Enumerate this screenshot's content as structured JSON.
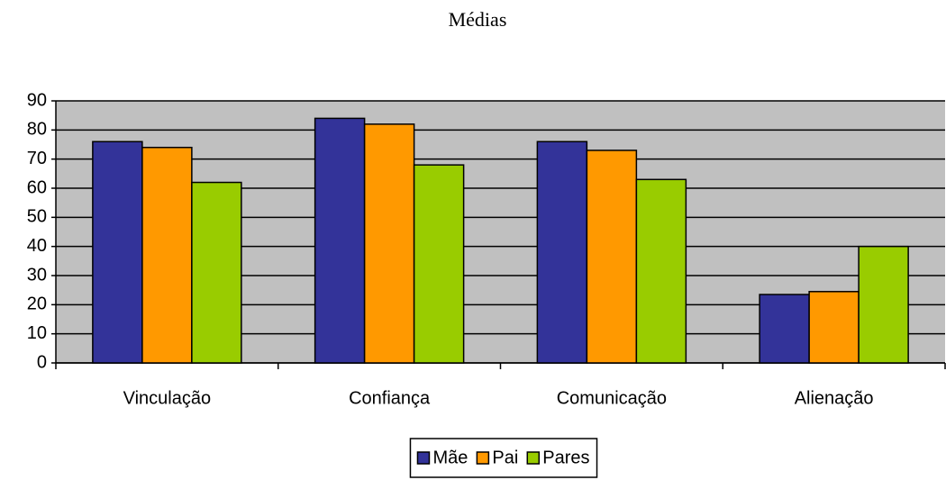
{
  "chart_data": {
    "type": "bar",
    "title": "Médias",
    "categories": [
      "Vinculação",
      "Confiança",
      "Comunicação",
      "Alienação"
    ],
    "series": [
      {
        "name": "Mãe",
        "color": "#333399",
        "values": [
          76,
          84,
          76,
          23.5
        ]
      },
      {
        "name": "Pai",
        "color": "#ff9900",
        "values": [
          74,
          82,
          73,
          24.5
        ]
      },
      {
        "name": "Pares",
        "color": "#99cc00",
        "values": [
          62,
          68,
          63,
          40
        ]
      }
    ],
    "ylim": [
      0,
      90
    ],
    "yticks": [
      0,
      10,
      20,
      30,
      40,
      50,
      60,
      70,
      80,
      90
    ],
    "grid": true,
    "plot_background": "#c0c0c0",
    "legend": "bottom"
  }
}
